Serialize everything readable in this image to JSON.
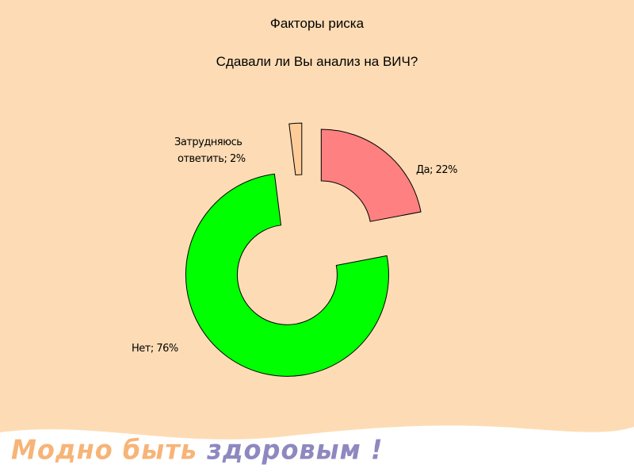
{
  "slide": {
    "title": "Факторы риска",
    "subtitle": "Сдавали ли Вы анализ на ВИЧ?",
    "slogan_part1": "Модно быть ",
    "slogan_part2": "здоровым !"
  },
  "colors": {
    "background": "#FDDCB5",
    "footer": "#FFFFFF"
  },
  "chart_data": {
    "type": "pie",
    "style": "exploded doughnut",
    "title": "Сдавали ли Вы анализ на ВИЧ?",
    "slices": [
      {
        "label": "Да",
        "value": 22,
        "text": "Да; 22%",
        "color": "#FF8080"
      },
      {
        "label": "Нет",
        "value": 76,
        "text": "Нет; 76%",
        "color": "#00FF00"
      },
      {
        "label": "Затрудняюсь ответить",
        "value": 2,
        "text_line1": "Затрудняюсь",
        "text_line2": "ответить; 2%",
        "color": "#FFCC99"
      }
    ]
  }
}
